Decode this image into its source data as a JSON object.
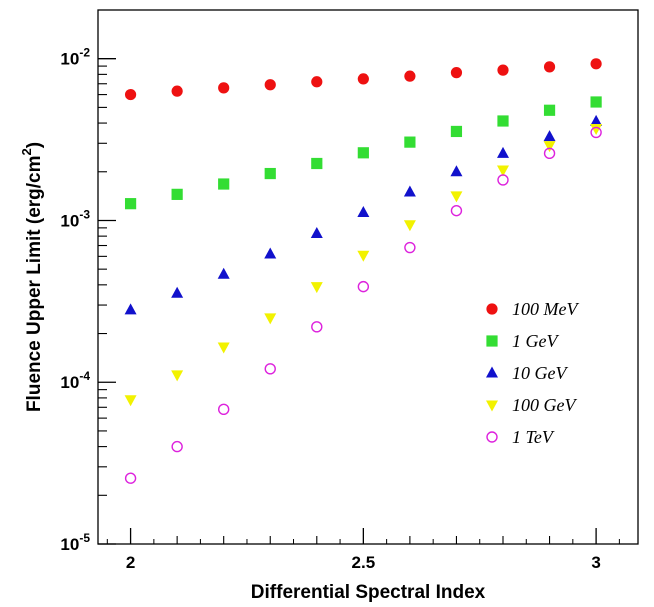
{
  "chart_data": {
    "type": "scatter",
    "xlabel": "Differential Spectral Index",
    "ylabel": "Fluence Upper Limit (erg/cm",
    "ylabel_sup": "2",
    "ylabel_close": ")",
    "y_scale": "log",
    "xlim": [
      1.93,
      3.09
    ],
    "ylim": [
      1e-05,
      0.02
    ],
    "x_ticks": [
      2,
      2.5,
      3
    ],
    "x_tick_labels": [
      "2",
      "2.5",
      "3"
    ],
    "y_ticks": [
      {
        "value": 0.01,
        "base": "10",
        "exp": "-2"
      },
      {
        "value": 0.001,
        "base": "10",
        "exp": "-3"
      },
      {
        "value": 0.0001,
        "base": "10",
        "exp": "-4"
      },
      {
        "value": 1e-05,
        "base": "10",
        "exp": "-5"
      }
    ],
    "x": [
      2.0,
      2.1,
      2.2,
      2.3,
      2.4,
      2.5,
      2.6,
      2.7,
      2.8,
      2.9,
      3.0
    ],
    "legend_position": "right",
    "series": [
      {
        "name": "100 MeV",
        "marker": "circle",
        "color": "#ee1111",
        "values": [
          0.006,
          0.0063,
          0.0066,
          0.0069,
          0.0072,
          0.0075,
          0.0078,
          0.0082,
          0.0085,
          0.0089,
          0.0093
        ]
      },
      {
        "name": "1 GeV",
        "marker": "square",
        "color": "#33dd33",
        "values": [
          0.00127,
          0.00145,
          0.00168,
          0.00195,
          0.00225,
          0.00262,
          0.00305,
          0.00355,
          0.00412,
          0.0048,
          0.0054
        ]
      },
      {
        "name": "10 GeV",
        "marker": "triangle-up",
        "color": "#1111cc",
        "values": [
          0.00028,
          0.000355,
          0.000465,
          0.00062,
          0.00083,
          0.00112,
          0.0015,
          0.002,
          0.0026,
          0.0033,
          0.0041
        ]
      },
      {
        "name": "100 GeV",
        "marker": "triangle-down",
        "color": "#f2f200",
        "values": [
          7.8e-05,
          0.000111,
          0.000165,
          0.00025,
          0.00039,
          0.00061,
          0.00094,
          0.00142,
          0.00205,
          0.0029,
          0.0037
        ]
      },
      {
        "name": "1 TeV",
        "marker": "open-circle",
        "color": "#dd22dd",
        "values": [
          2.55e-05,
          4e-05,
          6.8e-05,
          0.000121,
          0.00022,
          0.00039,
          0.00068,
          0.00115,
          0.00178,
          0.0026,
          0.0035
        ]
      }
    ]
  }
}
